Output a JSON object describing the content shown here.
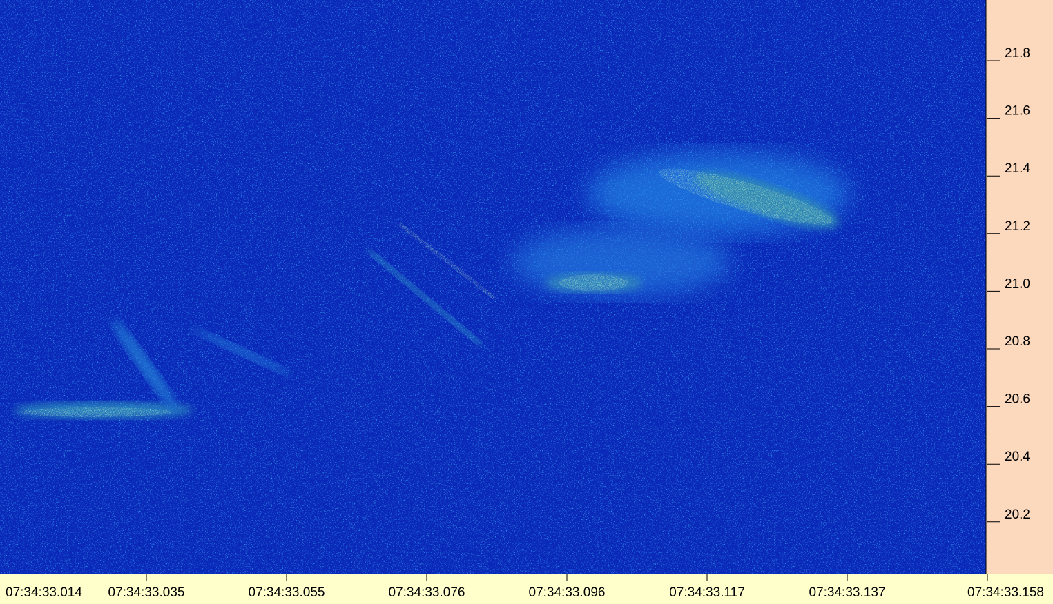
{
  "y_axis": {
    "ticks": [
      "21.8",
      "21.6",
      "21.4",
      "21.2",
      "21.0",
      "20.8",
      "20.6",
      "20.4",
      "20.2"
    ]
  },
  "x_axis": {
    "ticks": [
      "07:34:33.014",
      "07:34:33.035",
      "07:34:33.055",
      "07:34:33.076",
      "07:34:33.096",
      "07:34:33.117",
      "07:34:33.137",
      "07:34:33.158"
    ]
  }
}
